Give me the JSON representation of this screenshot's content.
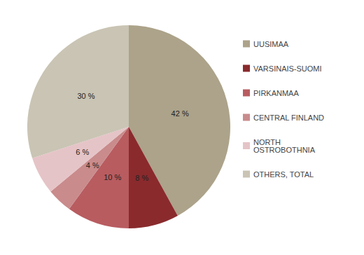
{
  "chart_data": {
    "type": "pie",
    "categories": [
      "UUSIMAA",
      "VARSINAIS-SUOMI",
      "PIRKANMAA",
      "CENTRAL FINLAND",
      "NORTH OSTROBOTHNIA",
      "OTHERS, TOTAL"
    ],
    "values": [
      42,
      8,
      10,
      4,
      6,
      30
    ],
    "value_labels": [
      "42 %",
      "8 %",
      "10 %",
      "4 %",
      "6 %",
      "30 %"
    ],
    "colors": [
      "#aca38a",
      "#8a2a2d",
      "#b85c60",
      "#c98b8c",
      "#e5c4c7",
      "#c9c4b4"
    ],
    "data_labels": true,
    "legend": "right"
  }
}
